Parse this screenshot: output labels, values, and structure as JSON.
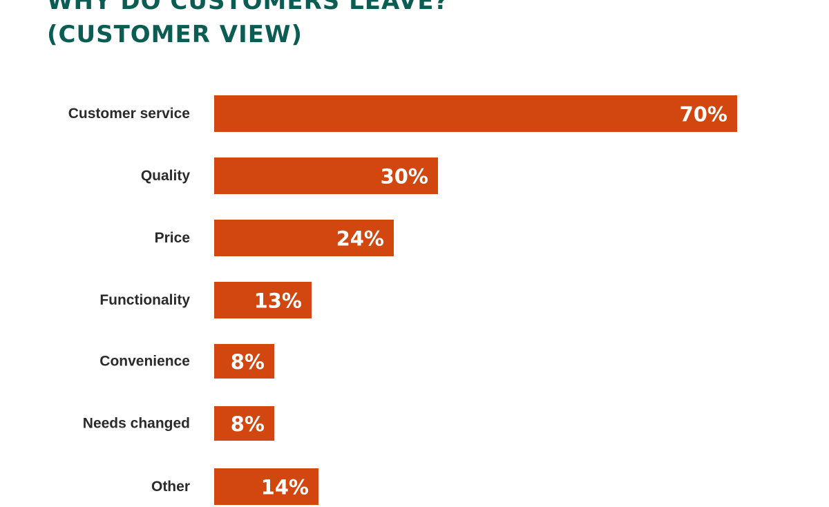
{
  "title": {
    "line1": "WHY DO CUSTOMERS LEAVE?",
    "line2": "(CUSTOMER VIEW)"
  },
  "colors": {
    "title": "#0b5c52",
    "bar": "#d2460f",
    "value_text": "#ffffff",
    "category_text": "#2a2a2a"
  },
  "chart_data": {
    "type": "bar",
    "orientation": "horizontal",
    "categories": [
      "Customer service",
      "Quality",
      "Price",
      "Functionality",
      "Convenience",
      "Needs changed",
      "Other"
    ],
    "values": [
      70,
      30,
      24,
      13,
      8,
      8,
      14
    ],
    "value_labels": [
      "70%",
      "30%",
      "24%",
      "13%",
      "8%",
      "8%",
      "14%"
    ],
    "unit": "%",
    "xlim": [
      0,
      70
    ],
    "grid": false,
    "legend": "none"
  }
}
